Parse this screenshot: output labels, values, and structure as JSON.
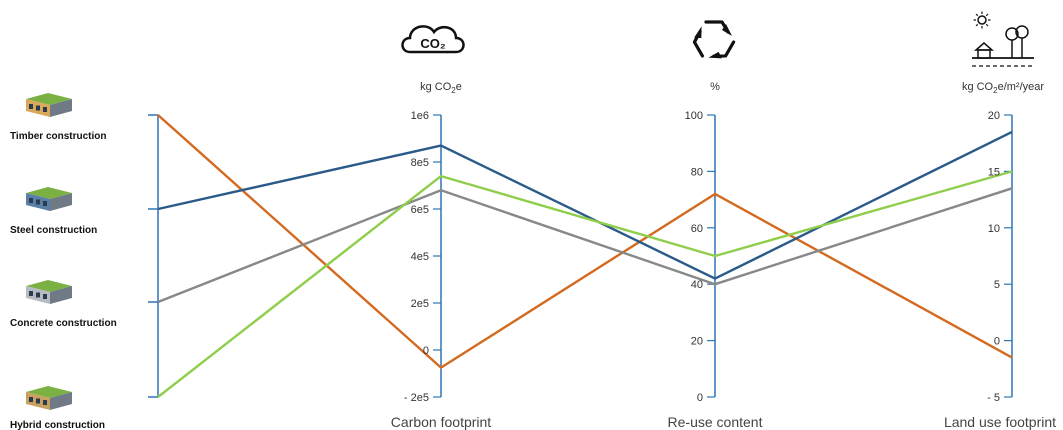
{
  "colors": {
    "axis": "#2e74b5",
    "timber": "#d46a1f",
    "steel": "#2a5a8a",
    "concrete": "#888888",
    "hybrid": "#8fce4a"
  },
  "icons": {
    "carbon": "co2-cloud-icon",
    "reuse": "recycle-icon",
    "land": "land-use-icon",
    "buildings": "building-icon"
  },
  "chart_data": {
    "type": "parallel-coordinates",
    "categories": [
      "Timber construction",
      "Steel construction",
      "Concrete construction",
      "Hybrid construction"
    ],
    "axes": [
      {
        "key": "construction",
        "title": "",
        "unit": "",
        "ticks": []
      },
      {
        "key": "carbon",
        "title": "Carbon footprint",
        "unit": "kg CO₂e",
        "unit_base": "kg CO",
        "unit_sub": "2",
        "unit_tail": "e",
        "ylim": [
          -200000,
          1000000
        ],
        "ticks": [
          {
            "v": 1000000,
            "label": "1e6"
          },
          {
            "v": 800000,
            "label": "8e5"
          },
          {
            "v": 600000,
            "label": "6e5"
          },
          {
            "v": 400000,
            "label": "4e5"
          },
          {
            "v": 200000,
            "label": "2e5"
          },
          {
            "v": 0,
            "label": "0"
          },
          {
            "v": -200000,
            "label": "- 2e5"
          }
        ]
      },
      {
        "key": "reuse",
        "title": "Re-use content",
        "unit": "%",
        "ylim": [
          0,
          100
        ],
        "ticks": [
          {
            "v": 100,
            "label": "100"
          },
          {
            "v": 80,
            "label": "80"
          },
          {
            "v": 60,
            "label": "60"
          },
          {
            "v": 40,
            "label": "40"
          },
          {
            "v": 20,
            "label": "20"
          },
          {
            "v": 0,
            "label": "0"
          }
        ]
      },
      {
        "key": "land",
        "title": "Land use footprint",
        "unit": "kg CO₂e/m²/year",
        "unit_base": "kg CO",
        "unit_sub": "2",
        "unit_tail": "e/m²/year",
        "ylim": [
          -5,
          20
        ],
        "ticks": [
          {
            "v": 20,
            "label": "20"
          },
          {
            "v": 15,
            "label": "15"
          },
          {
            "v": 10,
            "label": "10"
          },
          {
            "v": 5,
            "label": "5"
          },
          {
            "v": 0,
            "label": "0"
          },
          {
            "v": -5,
            "label": "- 5"
          }
        ]
      }
    ],
    "series": [
      {
        "name": "Timber construction",
        "color_key": "timber",
        "values": {
          "carbon": -75000,
          "reuse": 72,
          "land": -1.5
        }
      },
      {
        "name": "Steel construction",
        "color_key": "steel",
        "values": {
          "carbon": 870000,
          "reuse": 42,
          "land": 18.5
        }
      },
      {
        "name": "Concrete construction",
        "color_key": "concrete",
        "values": {
          "carbon": 680000,
          "reuse": 40,
          "land": 13.5
        }
      },
      {
        "name": "Hybrid construction",
        "color_key": "hybrid",
        "values": {
          "carbon": 740000,
          "reuse": 50,
          "land": 15
        }
      }
    ]
  }
}
